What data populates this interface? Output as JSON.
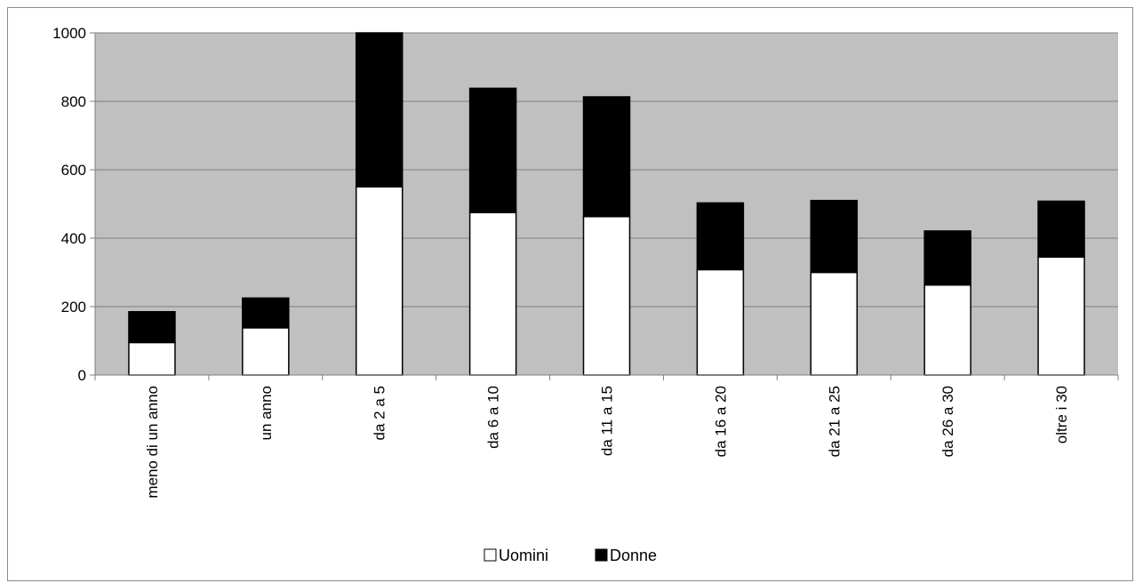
{
  "chart_data": {
    "type": "bar",
    "stacked": true,
    "categories": [
      "meno di un anno",
      "un anno",
      "da 2 a 5",
      "da 6 a 10",
      "da 11 a 15",
      "da 16 a 20",
      "da 21 a 25",
      "da 26 a 30",
      "oltre i 30"
    ],
    "series": [
      {
        "name": "Uomini",
        "color": "#ffffff",
        "values": [
          95,
          138,
          550,
          475,
          463,
          308,
          300,
          263,
          345
        ]
      },
      {
        "name": "Donne",
        "color": "#000000",
        "values": [
          90,
          87,
          450,
          363,
          350,
          195,
          210,
          158,
          163
        ]
      }
    ],
    "title": "",
    "xlabel": "",
    "ylabel": "",
    "ylim": [
      0,
      1000
    ],
    "yticks": [
      0,
      200,
      400,
      600,
      800,
      1000
    ],
    "grid": true,
    "plot_background": "#c0c0c0",
    "legend_position": "bottom"
  }
}
